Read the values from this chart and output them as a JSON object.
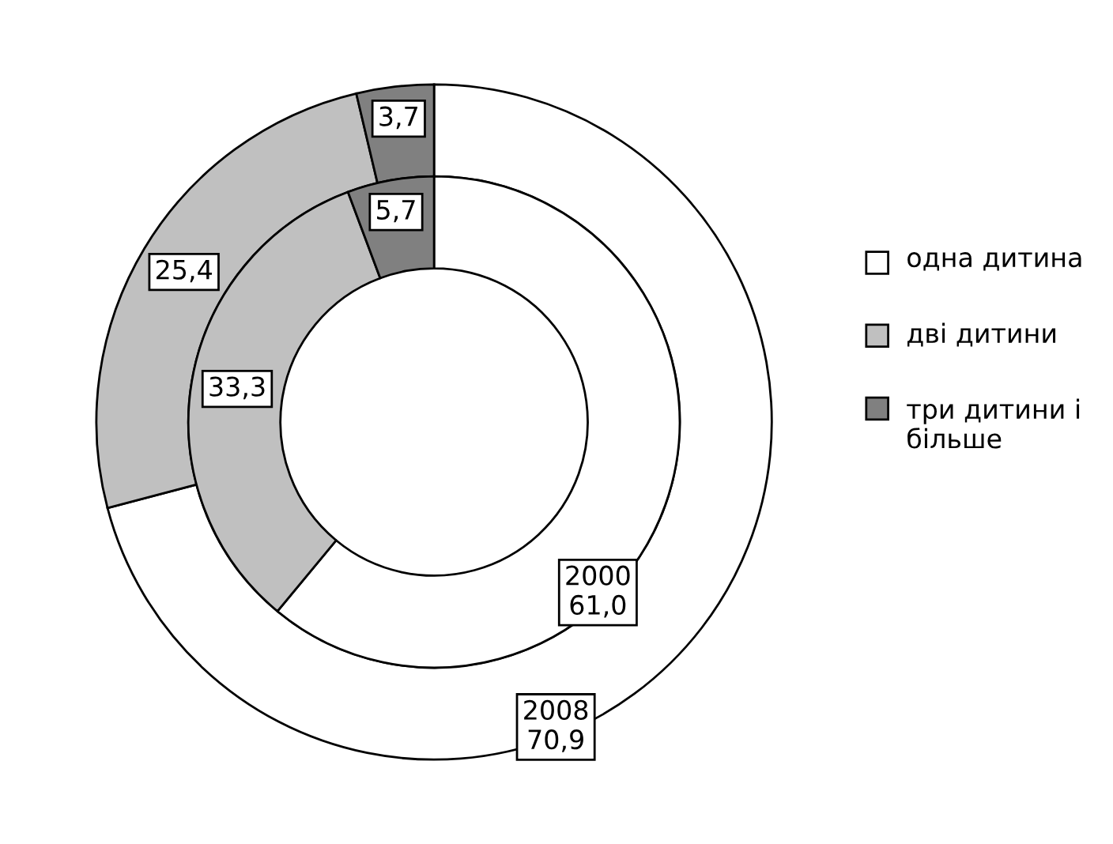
{
  "chart_data": {
    "type": "donut",
    "categories": [
      "одна дитина",
      "дві дитини",
      "три дитини і більше"
    ],
    "colors": [
      "#ffffff",
      "#c0c0c0",
      "#808080"
    ],
    "series": [
      {
        "name": "2008",
        "values": [
          70.9,
          25.4,
          3.7
        ],
        "value_labels": [
          "70,9",
          "25,4",
          "3,7"
        ]
      },
      {
        "name": "2000",
        "values": [
          61.0,
          33.3,
          5.7
        ],
        "value_labels": [
          "61,0",
          "33,3",
          "5,7"
        ]
      }
    ],
    "legend": "right"
  }
}
